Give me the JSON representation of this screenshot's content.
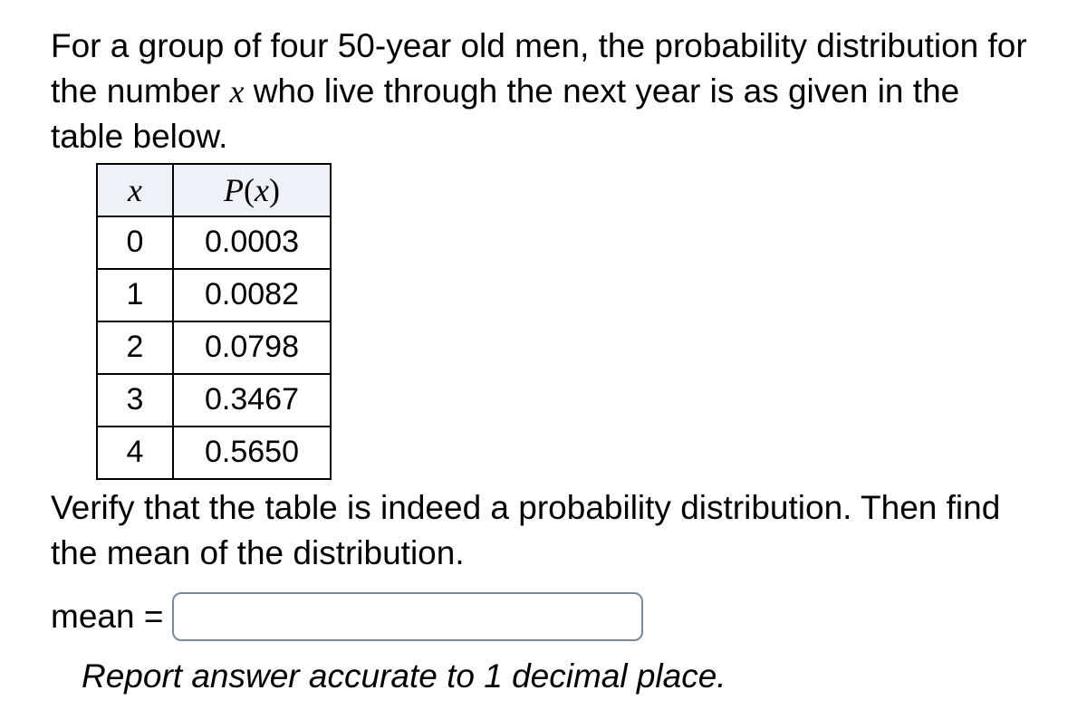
{
  "intro": {
    "pre": "For a group of four 50-year old men, the probability distribution for the number ",
    "var": "x",
    "post": " who live through the next year is as given in the table below."
  },
  "table": {
    "header": {
      "x_label": "x",
      "px_P": "P",
      "px_open": "(",
      "px_var": "x",
      "px_close": ")"
    },
    "rows": [
      {
        "x": "0",
        "px": "0.0003"
      },
      {
        "x": "1",
        "px": "0.0082"
      },
      {
        "x": "2",
        "px": "0.0798"
      },
      {
        "x": "3",
        "px": "0.3467"
      },
      {
        "x": "4",
        "px": "0.5650"
      }
    ],
    "header_bg": "#eef1f7",
    "border_color": "#000000"
  },
  "post_text": "Verify that the table is indeed a probability distribution. Then find the mean of the distribution.",
  "answer": {
    "label": "mean =",
    "value": "",
    "placeholder": ""
  },
  "hint": "Report answer accurate to 1 decimal place.",
  "colors": {
    "background": "#ffffff",
    "text": "#000000",
    "input_border": "#7a8a99"
  },
  "fonts": {
    "body_fontsize": 37,
    "table_cell_fontsize": 34,
    "header_math_fontsize": 36
  }
}
